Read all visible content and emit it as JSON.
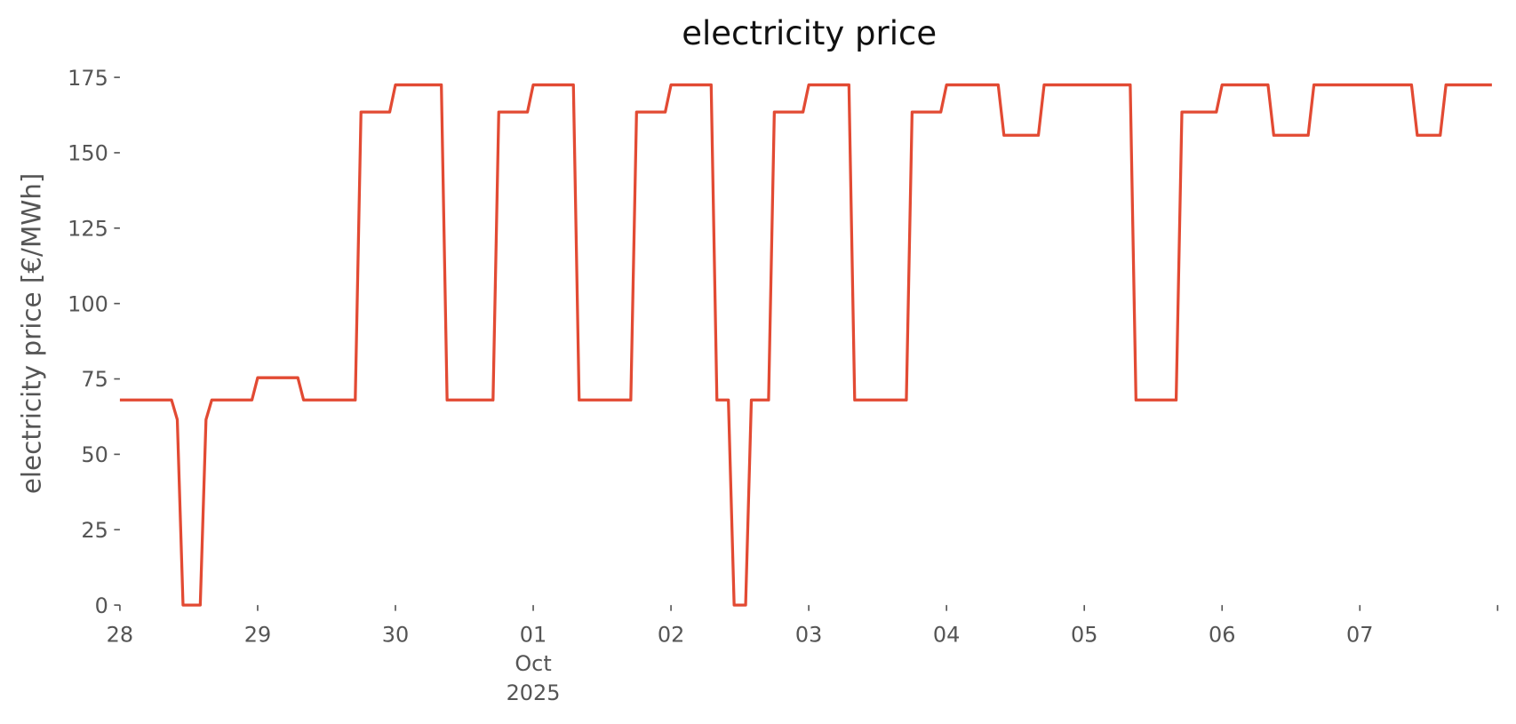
{
  "chart_data": {
    "type": "line",
    "title": "electricity price",
    "y_label": "electricity price [€/MWh]",
    "x": [
      "2025-09-28T00:00",
      "2025-09-28T09:00",
      "2025-09-28T10:00",
      "2025-09-28T11:00",
      "2025-09-28T14:00",
      "2025-09-28T15:00",
      "2025-09-28T16:00",
      "2025-09-28T23:00",
      "2025-09-29T00:00",
      "2025-09-29T07:00",
      "2025-09-29T08:00",
      "2025-09-29T17:00",
      "2025-09-29T18:00",
      "2025-09-29T23:00",
      "2025-09-30T00:00",
      "2025-09-30T08:00",
      "2025-09-30T09:00",
      "2025-09-30T17:00",
      "2025-09-30T18:00",
      "2025-09-30T23:00",
      "2025-10-01T00:00",
      "2025-10-01T07:00",
      "2025-10-01T08:00",
      "2025-10-01T17:00",
      "2025-10-01T18:00",
      "2025-10-01T23:00",
      "2025-10-02T00:00",
      "2025-10-02T07:00",
      "2025-10-02T08:00",
      "2025-10-02T10:00",
      "2025-10-02T11:00",
      "2025-10-02T13:00",
      "2025-10-02T14:00",
      "2025-10-02T17:00",
      "2025-10-02T18:00",
      "2025-10-02T23:00",
      "2025-10-03T00:00",
      "2025-10-03T07:00",
      "2025-10-03T08:00",
      "2025-10-03T17:00",
      "2025-10-03T18:00",
      "2025-10-03T23:00",
      "2025-10-04T00:00",
      "2025-10-04T09:00",
      "2025-10-04T10:00",
      "2025-10-04T16:00",
      "2025-10-04T17:00",
      "2025-10-05T08:00",
      "2025-10-05T09:00",
      "2025-10-05T16:00",
      "2025-10-05T17:00",
      "2025-10-05T23:00",
      "2025-10-06T00:00",
      "2025-10-06T08:00",
      "2025-10-06T09:00",
      "2025-10-06T15:00",
      "2025-10-06T16:00",
      "2025-10-07T09:00",
      "2025-10-07T10:00",
      "2025-10-07T14:00",
      "2025-10-07T15:00",
      "2025-10-07T23:00"
    ],
    "series": [
      {
        "name": "electricity price",
        "color": "#e24a33",
        "values": [
          68,
          68,
          61.5,
          0,
          0,
          61.5,
          68,
          68,
          75.4,
          75.4,
          68,
          68,
          163.5,
          163.5,
          172.5,
          172.5,
          68,
          68,
          163.5,
          163.5,
          172.5,
          172.5,
          68,
          68,
          163.5,
          163.5,
          172.5,
          172.5,
          68,
          68,
          0,
          0,
          68,
          68,
          163.5,
          163.5,
          172.5,
          172.5,
          68,
          68,
          163.5,
          163.5,
          172.5,
          172.5,
          155.8,
          155.8,
          172.5,
          172.5,
          68,
          68,
          163.5,
          163.5,
          172.5,
          172.5,
          155.8,
          155.8,
          172.5,
          172.5,
          155.8,
          155.8,
          172.5,
          172.5
        ]
      }
    ],
    "xlim": [
      "2025-09-28T00:00",
      "2025-10-08T00:00"
    ],
    "xticks": [
      {
        "value": "2025-09-28T00:00",
        "label": "28"
      },
      {
        "value": "2025-09-29T00:00",
        "label": "29"
      },
      {
        "value": "2025-09-30T00:00",
        "label": "30"
      },
      {
        "value": "2025-10-01T00:00",
        "label": "01\nOct\n2025"
      },
      {
        "value": "2025-10-02T00:00",
        "label": "02"
      },
      {
        "value": "2025-10-03T00:00",
        "label": "03"
      },
      {
        "value": "2025-10-04T00:00",
        "label": "04"
      },
      {
        "value": "2025-10-05T00:00",
        "label": "05"
      },
      {
        "value": "2025-10-06T00:00",
        "label": "06"
      },
      {
        "value": "2025-10-07T00:00",
        "label": "07"
      }
    ],
    "ylim": [
      0,
      175
    ],
    "yticks": [
      0,
      25,
      50,
      75,
      100,
      125,
      150,
      175
    ],
    "grid": false
  }
}
